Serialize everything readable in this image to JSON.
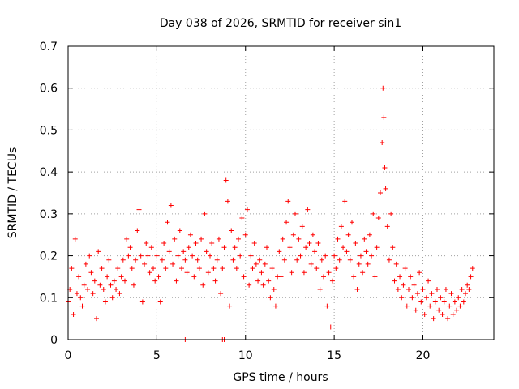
{
  "chart_data": {
    "type": "scatter",
    "title": "Day 038 of 2026, SRMTID for receiver sin1",
    "xlabel": "GPS time / hours",
    "ylabel": "SRMTID / TECUs",
    "xlim": [
      0,
      24
    ],
    "ylim": [
      0,
      0.7
    ],
    "xticks": [
      0,
      5,
      10,
      15,
      20
    ],
    "yticks": [
      0,
      0.1,
      0.2,
      0.3,
      0.4,
      0.5,
      0.6,
      0.7
    ],
    "xtick_labels": [
      "0",
      "5",
      "10",
      "15",
      "20"
    ],
    "ytick_labels": [
      "0",
      "0.1",
      "0.2",
      "0.3",
      "0.4",
      "0.5",
      "0.6",
      "0.7"
    ],
    "grid": true,
    "marker": "+",
    "color": "#ff0000",
    "series": [
      {
        "name": "sin1",
        "points": [
          [
            0.0,
            0.09
          ],
          [
            0.1,
            0.12
          ],
          [
            0.2,
            0.17
          ],
          [
            0.3,
            0.06
          ],
          [
            0.4,
            0.24
          ],
          [
            0.5,
            0.11
          ],
          [
            0.6,
            0.15
          ],
          [
            0.7,
            0.1
          ],
          [
            0.8,
            0.08
          ],
          [
            0.9,
            0.13
          ],
          [
            1.0,
            0.18
          ],
          [
            1.1,
            0.12
          ],
          [
            1.2,
            0.2
          ],
          [
            1.3,
            0.16
          ],
          [
            1.4,
            0.11
          ],
          [
            1.5,
            0.14
          ],
          [
            1.6,
            0.05
          ],
          [
            1.7,
            0.21
          ],
          [
            1.8,
            0.13
          ],
          [
            1.9,
            0.17
          ],
          [
            2.0,
            0.12
          ],
          [
            2.1,
            0.09
          ],
          [
            2.2,
            0.15
          ],
          [
            2.3,
            0.19
          ],
          [
            2.4,
            0.13
          ],
          [
            2.5,
            0.1
          ],
          [
            2.6,
            0.14
          ],
          [
            2.7,
            0.12
          ],
          [
            2.8,
            0.17
          ],
          [
            2.9,
            0.11
          ],
          [
            3.0,
            0.15
          ],
          [
            3.1,
            0.19
          ],
          [
            3.2,
            0.14
          ],
          [
            3.3,
            0.24
          ],
          [
            3.4,
            0.2
          ],
          [
            3.5,
            0.22
          ],
          [
            3.6,
            0.17
          ],
          [
            3.7,
            0.13
          ],
          [
            3.8,
            0.19
          ],
          [
            3.9,
            0.26
          ],
          [
            4.0,
            0.31
          ],
          [
            4.1,
            0.2
          ],
          [
            4.2,
            0.09
          ],
          [
            4.3,
            0.18
          ],
          [
            4.4,
            0.23
          ],
          [
            4.5,
            0.2
          ],
          [
            4.6,
            0.16
          ],
          [
            4.7,
            0.22
          ],
          [
            4.8,
            0.17
          ],
          [
            4.9,
            0.14
          ],
          [
            5.0,
            0.2
          ],
          [
            5.1,
            0.15
          ],
          [
            5.2,
            0.09
          ],
          [
            5.3,
            0.19
          ],
          [
            5.4,
            0.23
          ],
          [
            5.5,
            0.17
          ],
          [
            5.6,
            0.28
          ],
          [
            5.7,
            0.21
          ],
          [
            5.8,
            0.32
          ],
          [
            5.9,
            0.18
          ],
          [
            6.0,
            0.24
          ],
          [
            6.1,
            0.14
          ],
          [
            6.2,
            0.2
          ],
          [
            6.3,
            0.26
          ],
          [
            6.4,
            0.17
          ],
          [
            6.5,
            0.21
          ],
          [
            6.6,
            0.19
          ],
          [
            6.7,
            0.16
          ],
          [
            6.8,
            0.22
          ],
          [
            6.9,
            0.25
          ],
          [
            7.0,
            0.2
          ],
          [
            7.1,
            0.15
          ],
          [
            7.2,
            0.23
          ],
          [
            7.3,
            0.19
          ],
          [
            7.4,
            0.17
          ],
          [
            7.5,
            0.24
          ],
          [
            7.6,
            0.13
          ],
          [
            7.7,
            0.3
          ],
          [
            7.8,
            0.21
          ],
          [
            7.9,
            0.16
          ],
          [
            8.0,
            0.2
          ],
          [
            8.1,
            0.23
          ],
          [
            8.2,
            0.17
          ],
          [
            8.3,
            0.14
          ],
          [
            8.4,
            0.19
          ],
          [
            8.5,
            0.24
          ],
          [
            8.6,
            0.11
          ],
          [
            8.7,
            0.17
          ],
          [
            8.8,
            0.22
          ],
          [
            8.9,
            0.38
          ],
          [
            9.0,
            0.33
          ],
          [
            9.1,
            0.08
          ],
          [
            9.2,
            0.26
          ],
          [
            9.3,
            0.19
          ],
          [
            9.4,
            0.22
          ],
          [
            9.5,
            0.17
          ],
          [
            9.6,
            0.24
          ],
          [
            9.7,
            0.2
          ],
          [
            9.8,
            0.29
          ],
          [
            9.9,
            0.15
          ],
          [
            10.0,
            0.25
          ],
          [
            10.1,
            0.31
          ],
          [
            10.2,
            0.13
          ],
          [
            10.3,
            0.2
          ],
          [
            10.4,
            0.17
          ],
          [
            10.5,
            0.23
          ],
          [
            10.6,
            0.18
          ],
          [
            10.7,
            0.14
          ],
          [
            10.8,
            0.19
          ],
          [
            10.9,
            0.16
          ],
          [
            11.0,
            0.13
          ],
          [
            11.1,
            0.18
          ],
          [
            11.2,
            0.22
          ],
          [
            11.3,
            0.14
          ],
          [
            11.4,
            0.1
          ],
          [
            11.5,
            0.17
          ],
          [
            11.6,
            0.12
          ],
          [
            11.7,
            0.08
          ],
          [
            11.8,
            0.15
          ],
          [
            11.9,
            0.21
          ],
          [
            12.0,
            0.15
          ],
          [
            12.1,
            0.24
          ],
          [
            12.2,
            0.19
          ],
          [
            12.3,
            0.28
          ],
          [
            12.4,
            0.33
          ],
          [
            12.5,
            0.22
          ],
          [
            12.6,
            0.16
          ],
          [
            12.7,
            0.25
          ],
          [
            12.8,
            0.3
          ],
          [
            12.9,
            0.19
          ],
          [
            13.0,
            0.24
          ],
          [
            13.1,
            0.2
          ],
          [
            13.2,
            0.27
          ],
          [
            13.3,
            0.16
          ],
          [
            13.4,
            0.22
          ],
          [
            13.5,
            0.31
          ],
          [
            13.6,
            0.23
          ],
          [
            13.7,
            0.18
          ],
          [
            13.8,
            0.25
          ],
          [
            13.9,
            0.21
          ],
          [
            14.0,
            0.17
          ],
          [
            14.1,
            0.23
          ],
          [
            14.2,
            0.12
          ],
          [
            14.3,
            0.19
          ],
          [
            14.4,
            0.15
          ],
          [
            14.5,
            0.2
          ],
          [
            14.6,
            0.08
          ],
          [
            14.7,
            0.16
          ],
          [
            14.8,
            0.03
          ],
          [
            14.9,
            0.14
          ],
          [
            15.0,
            0.2
          ],
          [
            15.1,
            0.17
          ],
          [
            15.2,
            0.24
          ],
          [
            15.3,
            0.19
          ],
          [
            15.4,
            0.27
          ],
          [
            15.5,
            0.22
          ],
          [
            15.6,
            0.33
          ],
          [
            15.7,
            0.21
          ],
          [
            15.8,
            0.25
          ],
          [
            15.9,
            0.19
          ],
          [
            16.0,
            0.28
          ],
          [
            16.1,
            0.15
          ],
          [
            16.2,
            0.23
          ],
          [
            16.3,
            0.12
          ],
          [
            16.4,
            0.18
          ],
          [
            16.5,
            0.2
          ],
          [
            16.6,
            0.16
          ],
          [
            16.7,
            0.24
          ],
          [
            16.8,
            0.21
          ],
          [
            16.9,
            0.18
          ],
          [
            17.0,
            0.25
          ],
          [
            17.1,
            0.2
          ],
          [
            17.2,
            0.3
          ],
          [
            17.3,
            0.15
          ],
          [
            17.4,
            0.22
          ],
          [
            17.5,
            0.29
          ],
          [
            17.6,
            0.35
          ],
          [
            17.7,
            0.47
          ],
          [
            17.75,
            0.6
          ],
          [
            17.8,
            0.53
          ],
          [
            17.85,
            0.41
          ],
          [
            17.9,
            0.36
          ],
          [
            18.0,
            0.27
          ],
          [
            18.1,
            0.19
          ],
          [
            18.2,
            0.3
          ],
          [
            18.3,
            0.22
          ],
          [
            18.4,
            0.14
          ],
          [
            18.5,
            0.18
          ],
          [
            18.6,
            0.12
          ],
          [
            18.7,
            0.15
          ],
          [
            18.8,
            0.1
          ],
          [
            18.9,
            0.13
          ],
          [
            19.0,
            0.17
          ],
          [
            19.1,
            0.08
          ],
          [
            19.2,
            0.12
          ],
          [
            19.3,
            0.15
          ],
          [
            19.4,
            0.1
          ],
          [
            19.5,
            0.13
          ],
          [
            19.6,
            0.07
          ],
          [
            19.7,
            0.11
          ],
          [
            19.8,
            0.16
          ],
          [
            19.9,
            0.09
          ],
          [
            20.0,
            0.12
          ],
          [
            20.1,
            0.06
          ],
          [
            20.2,
            0.1
          ],
          [
            20.3,
            0.14
          ],
          [
            20.4,
            0.08
          ],
          [
            20.5,
            0.11
          ],
          [
            20.6,
            0.05
          ],
          [
            20.7,
            0.09
          ],
          [
            20.8,
            0.12
          ],
          [
            20.9,
            0.07
          ],
          [
            21.0,
            0.1
          ],
          [
            21.1,
            0.06
          ],
          [
            21.2,
            0.09
          ],
          [
            21.3,
            0.12
          ],
          [
            21.4,
            0.05
          ],
          [
            21.5,
            0.08
          ],
          [
            21.6,
            0.11
          ],
          [
            21.7,
            0.06
          ],
          [
            21.8,
            0.09
          ],
          [
            21.9,
            0.07
          ],
          [
            22.0,
            0.1
          ],
          [
            22.1,
            0.08
          ],
          [
            22.2,
            0.12
          ],
          [
            22.3,
            0.09
          ],
          [
            22.4,
            0.11
          ],
          [
            22.5,
            0.13
          ],
          [
            22.6,
            0.12
          ],
          [
            22.7,
            0.15
          ],
          [
            22.8,
            0.17
          ],
          [
            6.6,
            0.0
          ],
          [
            8.7,
            0.0
          ],
          [
            8.8,
            0.0
          ]
        ]
      }
    ]
  }
}
